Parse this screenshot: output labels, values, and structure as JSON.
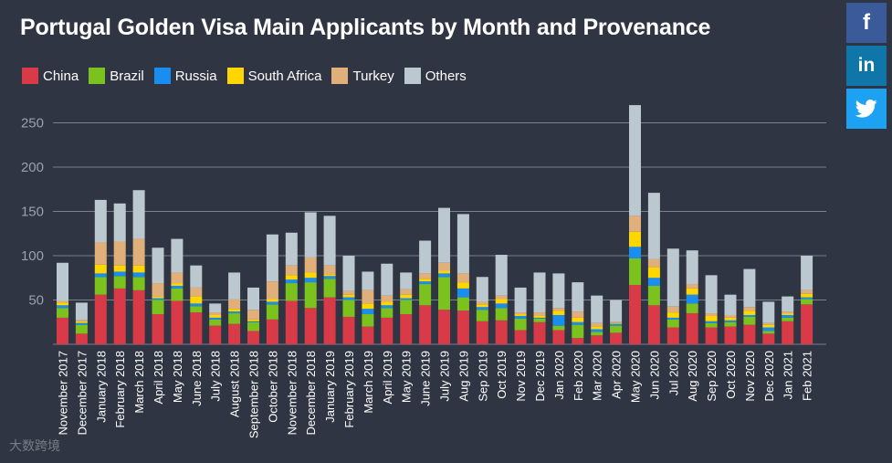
{
  "title": "Portugal Golden Visa Main Applicants by Month and Provenance",
  "watermark": "大数跨境",
  "share": {
    "facebook_label": "f",
    "linkedin_label": "in",
    "twitter_icon": "twitter-bird-icon"
  },
  "colors": {
    "background": "#2f3542",
    "China": "#d93a48",
    "Brazil": "#7cc21e",
    "Russia": "#1a8ef0",
    "South Africa": "#ffd600",
    "Turkey": "#e1b07a",
    "Others": "#bcc8cf",
    "grid": "#7a818c",
    "text": "#ffffff",
    "tick": "#9aa1aa"
  },
  "chart_data": {
    "type": "bar",
    "stacked": true,
    "title": "Portugal Golden Visa Main Applicants by Month and Provenance",
    "xlabel": "",
    "ylabel": "",
    "ylim": [
      0,
      270
    ],
    "yticks": [
      50,
      100,
      150,
      200,
      250
    ],
    "grid": true,
    "legend_position": "top-left",
    "categories": [
      "November 2017",
      "December 2017",
      "January 2018",
      "February 2018",
      "March 2018",
      "April 2018",
      "May 2018",
      "June 2018",
      "July 2018",
      "August 2018",
      "September 2018",
      "October 2018",
      "November 2018",
      "December 2018",
      "January 2019",
      "February 2019",
      "March 2019",
      "April 2019",
      "May 2019",
      "June 2019",
      "July 2019",
      "Aug 2019",
      "Sep 2019",
      "Oct 2019",
      "Nov 2019",
      "Dec 2019",
      "Jan 2020",
      "Feb 2020",
      "Mar 2020",
      "Apr 2020",
      "May 2020",
      "Jun 2020",
      "Jul 2020",
      "Aug 2020",
      "Sep 2020",
      "Oct 2020",
      "Nov 2020",
      "Dec 2020",
      "Jan 2021",
      "Feb 2021"
    ],
    "series": [
      {
        "name": "China",
        "values": [
          30,
          12,
          56,
          63,
          61,
          34,
          49,
          36,
          21,
          23,
          15,
          28,
          49,
          41,
          53,
          31,
          20,
          30,
          34,
          44,
          39,
          38,
          26,
          27,
          16,
          25,
          16,
          7,
          10,
          13,
          67,
          44,
          19,
          35,
          19,
          20,
          22,
          12,
          26,
          45
        ]
      },
      {
        "name": "Brazil",
        "values": [
          11,
          10,
          20,
          14,
          15,
          16,
          14,
          7,
          7,
          12,
          10,
          17,
          20,
          29,
          21,
          19,
          14,
          11,
          16,
          24,
          37,
          15,
          13,
          14,
          13,
          4,
          5,
          15,
          4,
          8,
          30,
          22,
          9,
          11,
          5,
          5,
          9,
          3,
          4,
          6
        ]
      },
      {
        "name": "Russia",
        "values": [
          3,
          2,
          4,
          5,
          5,
          2,
          3,
          3,
          2,
          2,
          1,
          3,
          4,
          5,
          3,
          3,
          6,
          3,
          2,
          3,
          4,
          10,
          3,
          5,
          3,
          1,
          12,
          3,
          3,
          2,
          13,
          9,
          2,
          10,
          2,
          2,
          2,
          4,
          3,
          2
        ]
      },
      {
        "name": "South Africa",
        "values": [
          3,
          2,
          10,
          7,
          8,
          2,
          3,
          8,
          3,
          3,
          2,
          3,
          5,
          6,
          2,
          3,
          6,
          4,
          4,
          3,
          3,
          7,
          3,
          5,
          2,
          2,
          5,
          5,
          3,
          1,
          17,
          12,
          6,
          7,
          6,
          3,
          5,
          3,
          2,
          4
        ]
      },
      {
        "name": "Turkey",
        "values": [
          2,
          1,
          25,
          27,
          30,
          15,
          12,
          10,
          3,
          11,
          11,
          20,
          11,
          17,
          10,
          4,
          15,
          7,
          6,
          6,
          9,
          10,
          3,
          4,
          2,
          4,
          3,
          7,
          4,
          1,
          18,
          9,
          7,
          5,
          3,
          3,
          4,
          2,
          2,
          4
        ]
      },
      {
        "name": "Others",
        "values": [
          43,
          20,
          48,
          43,
          55,
          40,
          38,
          25,
          10,
          30,
          25,
          53,
          37,
          51,
          56,
          40,
          21,
          36,
          19,
          37,
          62,
          67,
          28,
          46,
          28,
          45,
          39,
          33,
          31,
          25,
          125,
          75,
          65,
          38,
          43,
          23,
          43,
          24,
          17,
          39
        ]
      }
    ]
  }
}
